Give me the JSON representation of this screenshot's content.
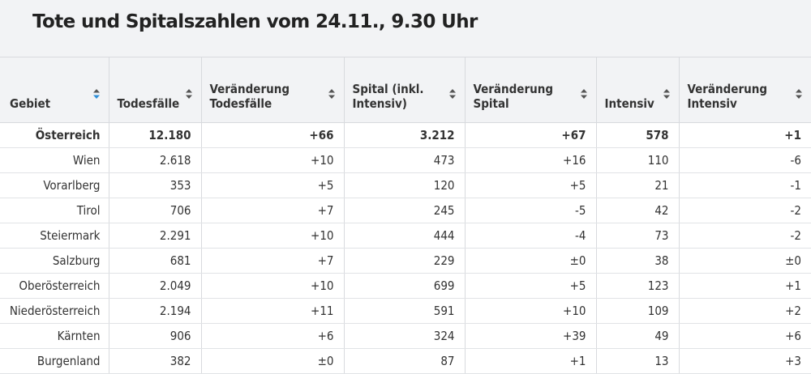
{
  "title": "Tote und Spitalszahlen vom 24.11., 9.30 Uhr",
  "headers": [
    {
      "label1": "Gebiet",
      "label2": "",
      "sort_icon": "sort-active-icon"
    },
    {
      "label1": "Todesfälle",
      "label2": "",
      "sort_icon": "sort-icon"
    },
    {
      "label1": "Veränderung",
      "label2": "Todesfälle",
      "sort_icon": "sort-icon"
    },
    {
      "label1": "Spital (inkl.",
      "label2": "Intensiv)",
      "sort_icon": "sort-icon"
    },
    {
      "label1": "Veränderung",
      "label2": "Spital",
      "sort_icon": "sort-icon"
    },
    {
      "label1": "Intensiv",
      "label2": "",
      "sort_icon": "sort-icon"
    },
    {
      "label1": "Veränderung",
      "label2": "Intensiv",
      "sort_icon": "sort-icon"
    }
  ],
  "rows": [
    {
      "bold": true,
      "cells": [
        "Österreich",
        "12.180",
        "+66",
        "3.212",
        "+67",
        "578",
        "+1"
      ]
    },
    {
      "bold": false,
      "cells": [
        "Wien",
        "2.618",
        "+10",
        "473",
        "+16",
        "110",
        "-6"
      ]
    },
    {
      "bold": false,
      "cells": [
        "Vorarlberg",
        "353",
        "+5",
        "120",
        "+5",
        "21",
        "-1"
      ]
    },
    {
      "bold": false,
      "cells": [
        "Tirol",
        "706",
        "+7",
        "245",
        "-5",
        "42",
        "-2"
      ]
    },
    {
      "bold": false,
      "cells": [
        "Steiermark",
        "2.291",
        "+10",
        "444",
        "-4",
        "73",
        "-2"
      ]
    },
    {
      "bold": false,
      "cells": [
        "Salzburg",
        "681",
        "+7",
        "229",
        "±0",
        "38",
        "±0"
      ]
    },
    {
      "bold": false,
      "cells": [
        "Oberösterreich",
        "2.049",
        "+10",
        "699",
        "+5",
        "123",
        "+1"
      ]
    },
    {
      "bold": false,
      "cells": [
        "Niederösterreich",
        "2.194",
        "+11",
        "591",
        "+10",
        "109",
        "+2"
      ]
    },
    {
      "bold": false,
      "cells": [
        "Kärnten",
        "906",
        "+6",
        "324",
        "+39",
        "49",
        "+6"
      ]
    },
    {
      "bold": false,
      "cells": [
        "Burgenland",
        "382",
        "±0",
        "87",
        "+1",
        "13",
        "+3"
      ]
    }
  ],
  "colors": {
    "sort_active": "#2f8fd8",
    "sort_inactive": "#555555"
  }
}
